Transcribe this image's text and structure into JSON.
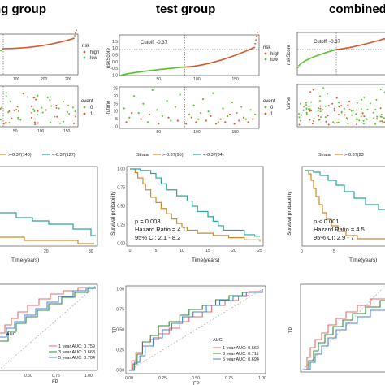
{
  "titles": {
    "training": "ng group",
    "test": "test group",
    "combined": "combined"
  },
  "colors": {
    "high": "#d65a2c",
    "low": "#5ac32d",
    "km_high": "#d08a2a",
    "km_low": "#2aa59a",
    "roc1": "#e36b6b",
    "roc3": "#2e8b3a",
    "roc5": "#4a80d8",
    "grey": "#9a9a9a"
  },
  "risk_labels": {
    "legend_title": "risk",
    "high": "high",
    "low": "low",
    "event_title": "event",
    "event0": "0",
    "event1": "1",
    "ylab_score": "riskScore",
    "ylab_time": "futime"
  },
  "strata": {
    "label": "Strata",
    "training": {
      "high": ">-0.37(140)",
      "low": "<-0.37(127)"
    },
    "test": {
      "high": ">-0.37(95)",
      "low": "<-0.37(84)"
    },
    "combined": {
      "high": ">-0.37(23"
    }
  },
  "km_axis": {
    "xlab": "Time(years)",
    "ylab": "Survival probability"
  },
  "roc_axis": {
    "xlab": "FP",
    "ylab": "TP",
    "legend_title": "AUC"
  },
  "training_roc_legend": [
    "1 year AUC: 0.759",
    "3 year AUC: 0.668",
    "5 year AUC: 0.704"
  ],
  "test_roc_legend": [
    "1 year AUC: 0.669",
    "3 year AUC: 0.711",
    "5 year AUC: 0.694"
  ],
  "chart_data": [
    {
      "type": "scatter",
      "panel": "risk-score-test",
      "title": "test group",
      "cutoff_label": "Cutoff: -0.37",
      "cutoff_value": -0.37,
      "cutoff_index": 84,
      "ylim": [
        -1.0,
        2.0
      ],
      "y_ticks": [
        "-1.0",
        "-0.5",
        "0.0",
        "0.5",
        "1.0",
        "1.5"
      ],
      "x_ticks": [
        "50",
        "100",
        "150"
      ],
      "n": 179,
      "series": [
        {
          "name": "low",
          "x_range": [
            1,
            84
          ],
          "y_range": [
            -1.0,
            -0.37
          ]
        },
        {
          "name": "high",
          "x_range": [
            85,
            179
          ],
          "y_range": [
            -0.37,
            1.55
          ]
        }
      ]
    },
    {
      "type": "scatter",
      "panel": "survival-time-test",
      "ylim": [
        0,
        25
      ],
      "y_ticks": [
        "0",
        "5",
        "10",
        "15",
        "20",
        "25"
      ],
      "x_ticks": [
        "50",
        "100",
        "150"
      ],
      "cutoff_index": 84,
      "series": [
        {
          "name": "0",
          "points": [
            [
              5,
              12
            ],
            [
              12,
              6
            ],
            [
              18,
              20
            ],
            [
              24,
              9
            ],
            [
              30,
              15
            ],
            [
              36,
              3
            ],
            [
              42,
              24
            ],
            [
              48,
              11
            ],
            [
              55,
              7
            ],
            [
              61,
              17
            ],
            [
              66,
              4
            ],
            [
              72,
              13
            ],
            [
              78,
              21
            ],
            [
              90,
              8
            ],
            [
              96,
              14
            ],
            [
              102,
              5
            ],
            [
              108,
              18
            ],
            [
              115,
              10
            ],
            [
              121,
              22
            ],
            [
              128,
              3
            ],
            [
              134,
              12
            ],
            [
              140,
              7
            ],
            [
              146,
              16
            ],
            [
              152,
              9
            ],
            [
              158,
              13
            ],
            [
              164,
              5
            ],
            [
              170,
              11
            ],
            [
              176,
              8
            ]
          ]
        },
        {
          "name": "1",
          "points": [
            [
              8,
              3
            ],
            [
              15,
              9
            ],
            [
              27,
              5
            ],
            [
              38,
              8
            ],
            [
              50,
              2
            ],
            [
              63,
              6
            ],
            [
              75,
              4
            ],
            [
              86,
              2
            ],
            [
              93,
              6
            ],
            [
              99,
              3
            ],
            [
              105,
              9
            ],
            [
              112,
              4
            ],
            [
              118,
              7
            ],
            [
              125,
              2
            ],
            [
              131,
              5
            ],
            [
              137,
              3
            ],
            [
              143,
              8
            ],
            [
              149,
              2
            ],
            [
              155,
              4
            ],
            [
              161,
              6
            ],
            [
              167,
              3
            ],
            [
              173,
              5
            ]
          ]
        }
      ]
    },
    {
      "type": "line",
      "panel": "km-test",
      "xlim": [
        0,
        25
      ],
      "ylim": [
        0,
        1
      ],
      "x_ticks": [
        "0",
        "5",
        "10",
        "15",
        "20",
        "25"
      ],
      "y_ticks": [
        "0.00",
        "0.25",
        "0.50",
        "0.75",
        "1.00"
      ],
      "annotations": [
        "p = 0.008",
        "Hazard Ratio = 4.1",
        "95% CI: 2.1 - 8.2"
      ],
      "series": [
        {
          "name": ">-0.37(95)",
          "points": [
            [
              0,
              1.0
            ],
            [
              1,
              0.95
            ],
            [
              1.5,
              0.88
            ],
            [
              2.5,
              0.8
            ],
            [
              3,
              0.72
            ],
            [
              4,
              0.62
            ],
            [
              5,
              0.55
            ],
            [
              6,
              0.47
            ],
            [
              7,
              0.4
            ],
            [
              8,
              0.33
            ],
            [
              9,
              0.27
            ],
            [
              10,
              0.22
            ],
            [
              11,
              0.18
            ],
            [
              13,
              0.14
            ],
            [
              16,
              0.11
            ],
            [
              19,
              0.08
            ],
            [
              22,
              0.05
            ],
            [
              25,
              0.03
            ]
          ]
        },
        {
          "name": "<-0.37(84)",
          "points": [
            [
              0,
              1.0
            ],
            [
              2,
              0.98
            ],
            [
              4,
              0.94
            ],
            [
              5,
              0.88
            ],
            [
              6,
              0.8
            ],
            [
              7,
              0.72
            ],
            [
              9,
              0.64
            ],
            [
              11,
              0.57
            ],
            [
              12,
              0.5
            ],
            [
              13,
              0.43
            ],
            [
              15,
              0.36
            ],
            [
              16,
              0.3
            ],
            [
              17,
              0.24
            ],
            [
              18,
              0.18
            ],
            [
              22,
              0.12
            ],
            [
              24,
              0.1
            ],
            [
              25,
              0.1
            ]
          ]
        }
      ]
    },
    {
      "type": "line",
      "panel": "roc-test",
      "xlim": [
        0,
        1
      ],
      "ylim": [
        0,
        1
      ],
      "x_ticks": [
        "0.00",
        "0.25",
        "0.50",
        "0.75",
        "1.00"
      ],
      "y_ticks": [
        "0.00",
        "0.25",
        "0.50",
        "0.75",
        "1.00"
      ],
      "series": [
        {
          "name": "1 year AUC: 0.669",
          "points": [
            [
              0,
              0
            ],
            [
              0.02,
              0.12
            ],
            [
              0.05,
              0.22
            ],
            [
              0.1,
              0.3
            ],
            [
              0.15,
              0.38
            ],
            [
              0.22,
              0.45
            ],
            [
              0.3,
              0.52
            ],
            [
              0.38,
              0.6
            ],
            [
              0.45,
              0.66
            ],
            [
              0.55,
              0.72
            ],
            [
              0.62,
              0.8
            ],
            [
              0.72,
              0.86
            ],
            [
              0.82,
              0.92
            ],
            [
              0.9,
              0.97
            ],
            [
              1,
              1
            ]
          ]
        },
        {
          "name": "3 year AUC: 0.711",
          "points": [
            [
              0,
              0
            ],
            [
              0.03,
              0.08
            ],
            [
              0.06,
              0.2
            ],
            [
              0.1,
              0.35
            ],
            [
              0.16,
              0.43
            ],
            [
              0.22,
              0.55
            ],
            [
              0.3,
              0.6
            ],
            [
              0.38,
              0.68
            ],
            [
              0.45,
              0.75
            ],
            [
              0.55,
              0.8
            ],
            [
              0.65,
              0.87
            ],
            [
              0.75,
              0.92
            ],
            [
              0.85,
              0.96
            ],
            [
              1,
              1
            ]
          ]
        },
        {
          "name": "5 year AUC: 0.694",
          "points": [
            [
              0,
              0
            ],
            [
              0.04,
              0.1
            ],
            [
              0.08,
              0.18
            ],
            [
              0.12,
              0.3
            ],
            [
              0.18,
              0.4
            ],
            [
              0.25,
              0.5
            ],
            [
              0.32,
              0.58
            ],
            [
              0.4,
              0.66
            ],
            [
              0.48,
              0.72
            ],
            [
              0.58,
              0.8
            ],
            [
              0.68,
              0.86
            ],
            [
              0.78,
              0.91
            ],
            [
              0.88,
              0.96
            ],
            [
              1,
              1
            ]
          ]
        }
      ]
    }
  ]
}
